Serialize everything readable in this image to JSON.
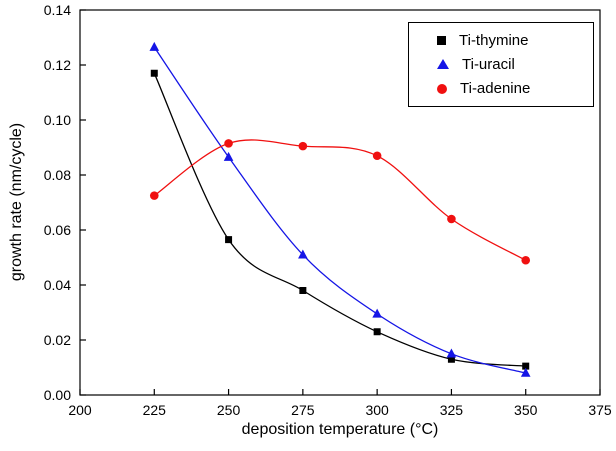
{
  "chart_data": {
    "type": "line",
    "title": "",
    "xlabel": "deposition temperature (°C)",
    "ylabel": "growth rate (nm/cycle)",
    "x": [
      225,
      250,
      275,
      300,
      325,
      350
    ],
    "series": [
      {
        "name": "Ti-thymine",
        "color": "#000000",
        "marker": "square",
        "values": [
          0.117,
          0.0565,
          0.038,
          0.023,
          0.013,
          0.0105
        ]
      },
      {
        "name": "Ti-uracil",
        "color": "#1515e6",
        "marker": "triangle",
        "values": [
          0.1265,
          0.0865,
          0.051,
          0.0295,
          0.015,
          0.008
        ]
      },
      {
        "name": "Ti-adenine",
        "color": "#f01010",
        "marker": "circle",
        "values": [
          0.0725,
          0.0915,
          0.0905,
          0.087,
          0.064,
          0.049
        ]
      }
    ],
    "xlim": [
      200,
      375
    ],
    "ylim": [
      0,
      0.14
    ],
    "xticks": [
      200,
      225,
      250,
      275,
      300,
      325,
      350,
      375
    ],
    "yticks": [
      0,
      0.02,
      0.04,
      0.06,
      0.08,
      0.1,
      0.12,
      0.14
    ],
    "grid": false,
    "legend_position": "top-right"
  }
}
